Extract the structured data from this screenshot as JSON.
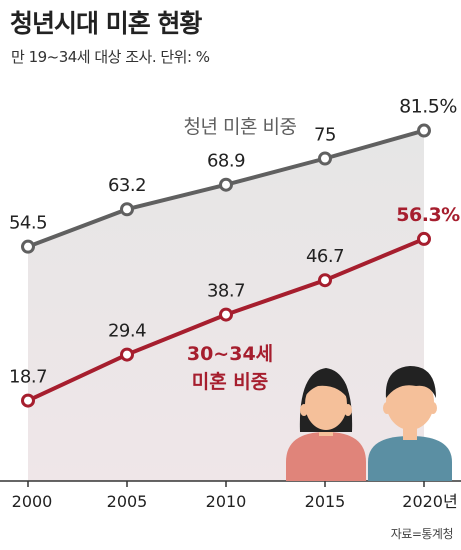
{
  "title": "청년시대 미혼 현황",
  "subtitle": "만 19~34세 대상 조사. 단위: %",
  "source": "자료=통계청",
  "colors": {
    "youth": "#606060",
    "age30": "#a61e2e",
    "area_top": "#e6e6e6",
    "area_bottom": "#efe6e8",
    "axis": "#333333",
    "woman_skin": "#f5c09a",
    "woman_body": "#e0847a",
    "man_body": "#5b8fa3",
    "hair": "#222222"
  },
  "chart_data": {
    "type": "line",
    "title": "청년시대 미혼 현황",
    "subtitle": "만 19~34세 대상 조사. 단위: %",
    "x": [
      "2000",
      "2005",
      "2010",
      "2015",
      "2020년"
    ],
    "ylim": [
      0,
      90
    ],
    "grid": false,
    "series": [
      {
        "name": "청년 미혼 비중",
        "values": [
          54.5,
          63.2,
          68.9,
          75,
          81.5
        ],
        "labels": [
          "54.5",
          "63.2",
          "68.9",
          "75",
          "81.5%"
        ],
        "color": "#606060"
      },
      {
        "name": "30~34세 미혼 비중",
        "values": [
          18.7,
          29.4,
          38.7,
          46.7,
          56.3
        ],
        "labels": [
          "18.7",
          "29.4",
          "38.7",
          "46.7",
          "56.3%"
        ],
        "color": "#a61e2e"
      }
    ]
  },
  "illustration": {
    "icons": [
      "woman-icon",
      "man-icon"
    ]
  }
}
